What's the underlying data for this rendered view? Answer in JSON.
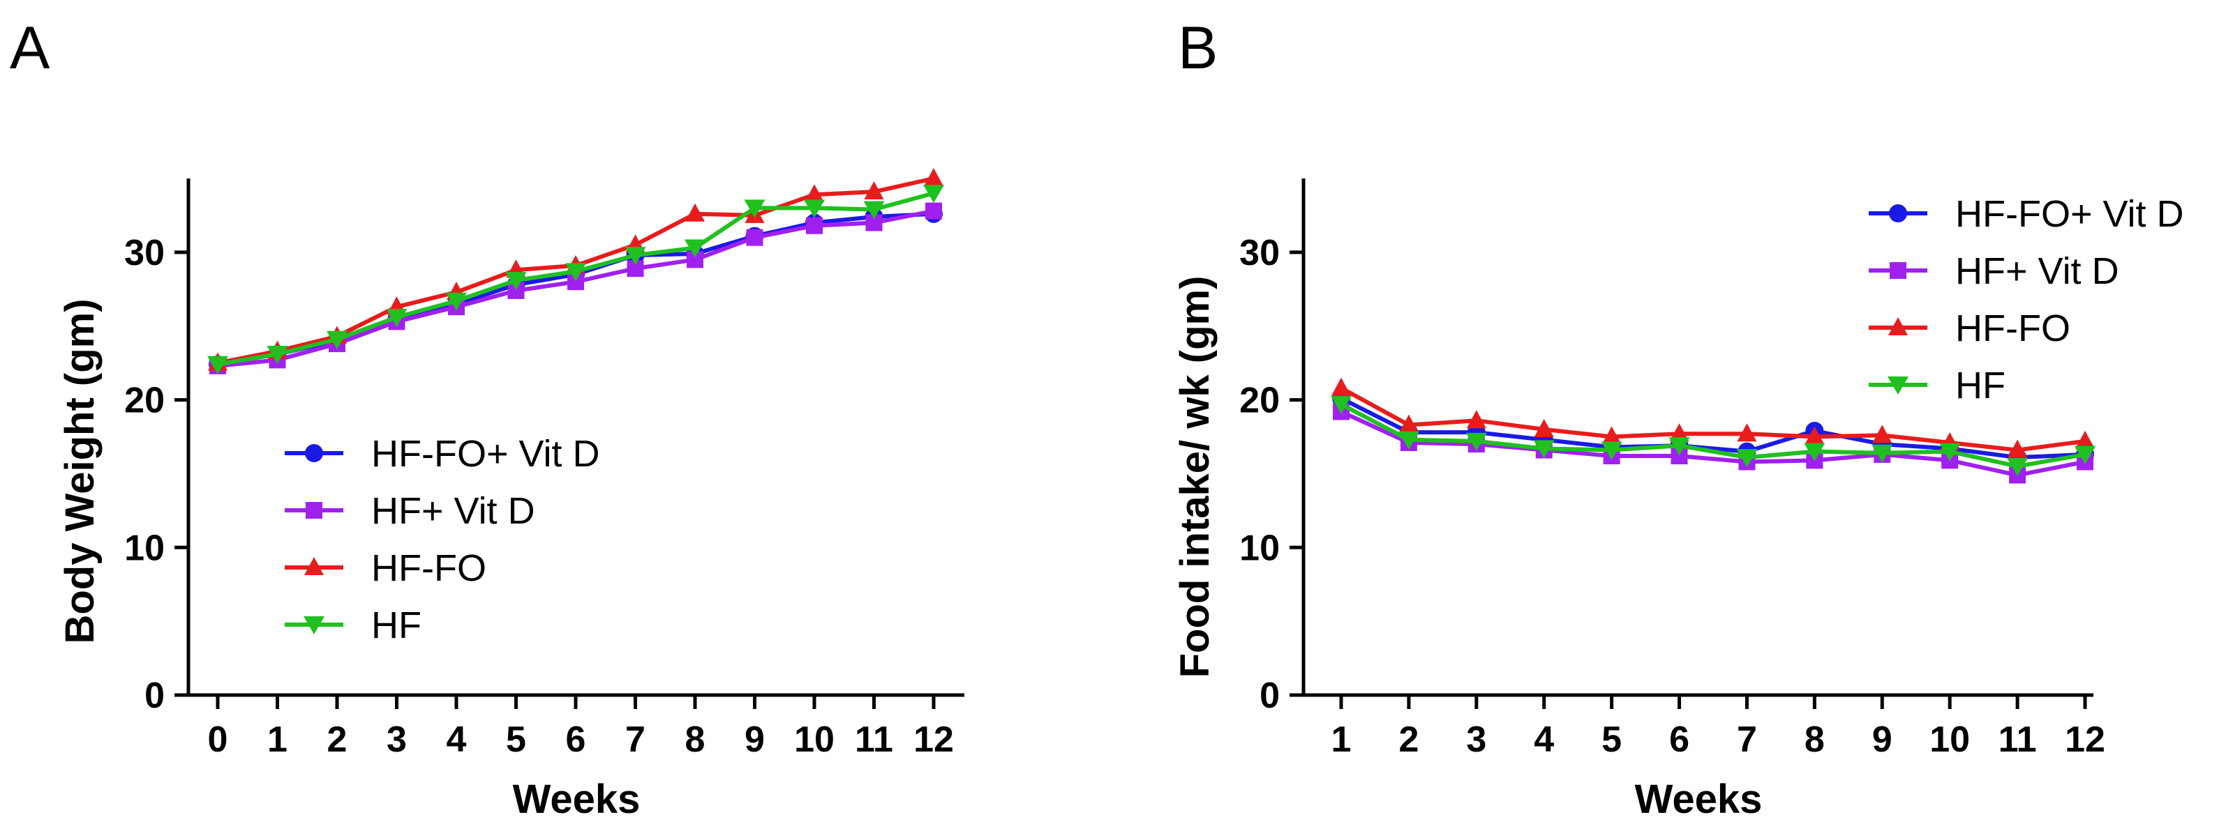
{
  "chart_data": [
    {
      "panel_label": "A",
      "type": "line",
      "title": "",
      "xlabel": "Weeks",
      "ylabel": "Body Weight (gm)",
      "x": [
        0,
        1,
        2,
        3,
        4,
        5,
        6,
        7,
        8,
        9,
        10,
        11,
        12
      ],
      "xlim": [
        0,
        12
      ],
      "ylim": [
        0,
        35
      ],
      "yticks": [
        0,
        10,
        20,
        30
      ],
      "grid": false,
      "legend_position": "center-left",
      "series": [
        {
          "name": "HF-FO+ Vit D",
          "color": "#1a1ae6",
          "marker": "circle",
          "values": [
            22.4,
            23.1,
            24.0,
            25.5,
            26.5,
            27.8,
            28.5,
            29.8,
            29.9,
            31.1,
            32.0,
            32.4,
            32.6
          ]
        },
        {
          "name": "HF+ Vit D",
          "color": "#a020f0",
          "marker": "square",
          "values": [
            22.3,
            22.7,
            23.8,
            25.3,
            26.3,
            27.4,
            28.0,
            28.9,
            29.5,
            31.0,
            31.8,
            32.0,
            32.8
          ]
        },
        {
          "name": "HF-FO",
          "color": "#e81c1c",
          "marker": "triangle-up",
          "values": [
            22.5,
            23.3,
            24.3,
            26.3,
            27.3,
            28.8,
            29.1,
            30.5,
            32.6,
            32.5,
            33.9,
            34.1,
            35.0
          ]
        },
        {
          "name": "HF",
          "color": "#1fc01f",
          "marker": "triangle-down",
          "values": [
            22.4,
            23.1,
            24.1,
            25.6,
            26.7,
            28.1,
            28.7,
            29.8,
            30.3,
            33.0,
            33.0,
            32.9,
            34.0
          ]
        }
      ]
    },
    {
      "panel_label": "B",
      "type": "line",
      "title": "",
      "xlabel": "Weeks",
      "ylabel": "Food intake/ wk (gm)",
      "x": [
        1,
        2,
        3,
        4,
        5,
        6,
        7,
        8,
        9,
        10,
        11,
        12
      ],
      "xlim": [
        1,
        12
      ],
      "ylim": [
        0,
        35
      ],
      "yticks": [
        0,
        10,
        20,
        30
      ],
      "grid": false,
      "legend_position": "top-right",
      "series": [
        {
          "name": "HF-FO+ Vit D",
          "color": "#1a1ae6",
          "marker": "circle",
          "values": [
            20.1,
            17.8,
            17.8,
            17.3,
            16.8,
            16.9,
            16.5,
            17.9,
            17.0,
            16.7,
            16.1,
            16.3
          ]
        },
        {
          "name": "HF+ Vit D",
          "color": "#a020f0",
          "marker": "square",
          "values": [
            19.2,
            17.1,
            17.0,
            16.6,
            16.2,
            16.2,
            15.8,
            15.9,
            16.3,
            15.9,
            14.9,
            15.8
          ]
        },
        {
          "name": "HF-FO",
          "color": "#e81c1c",
          "marker": "triangle-up",
          "values": [
            20.8,
            18.3,
            18.6,
            18.0,
            17.5,
            17.7,
            17.7,
            17.5,
            17.6,
            17.1,
            16.6,
            17.2
          ]
        },
        {
          "name": "HF",
          "color": "#1fc01f",
          "marker": "triangle-down",
          "values": [
            19.7,
            17.3,
            17.2,
            16.7,
            16.6,
            16.9,
            16.1,
            16.5,
            16.4,
            16.5,
            15.5,
            16.3
          ]
        }
      ]
    }
  ]
}
